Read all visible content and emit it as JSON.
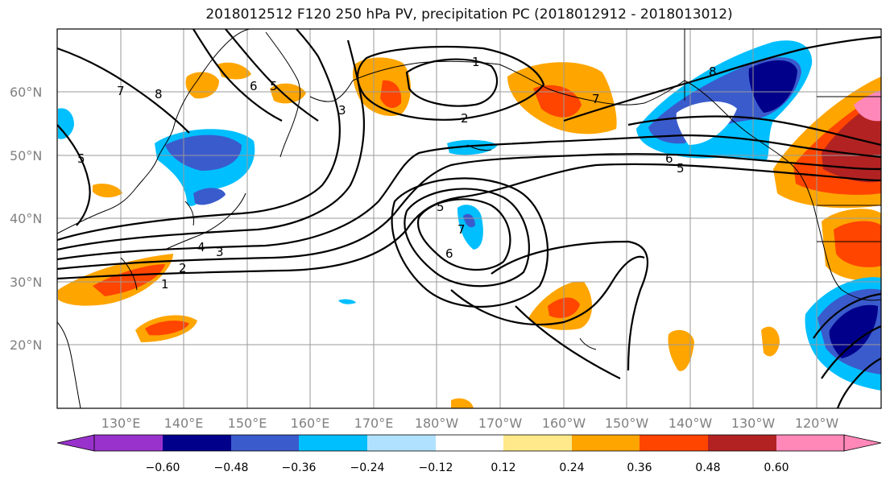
{
  "title": "2018012512 F120 250 hPa PV, precipitation PC (2018012912 - 2018013012)",
  "map": {
    "lat_ticks": [
      "60°N",
      "50°N",
      "40°N",
      "30°N",
      "20°N"
    ],
    "lon_ticks": [
      "130°E",
      "140°E",
      "150°E",
      "160°E",
      "170°E",
      "180°W",
      "170°W",
      "160°W",
      "150°W",
      "140°W",
      "130°W",
      "120°W"
    ],
    "contour_labels": [
      "7",
      "8",
      "6",
      "5",
      "3",
      "1",
      "2",
      "5",
      "4",
      "3",
      "2",
      "1",
      "5",
      "7",
      "6",
      "8",
      "7",
      "6",
      "5"
    ]
  },
  "colorbar": {
    "labels": [
      "−0.60",
      "−0.48",
      "−0.36",
      "−0.24",
      "−0.12",
      "0.12",
      "0.24",
      "0.36",
      "0.48",
      "0.60"
    ],
    "colors": [
      "#9932cc",
      "#00008b",
      "#3a5bcc",
      "#00bfff",
      "#b0e2ff",
      "#ffffff",
      "#ffe98a",
      "#ffa500",
      "#ff4500",
      "#b22222",
      "#ff88b8"
    ]
  }
}
